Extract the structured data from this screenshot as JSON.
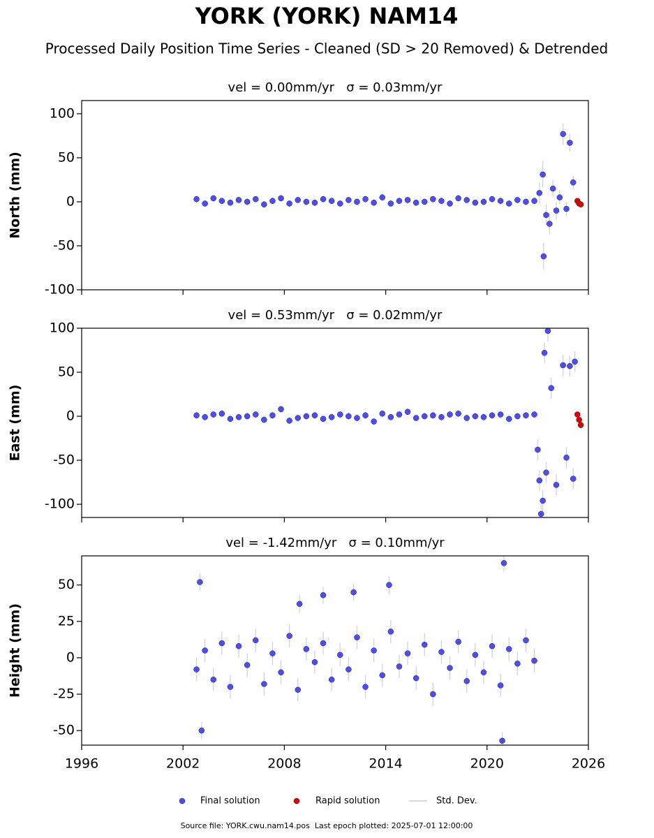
{
  "title": "YORK (YORK) NAM14",
  "subtitle": "Processed Daily Position Time Series - Cleaned (SD > 20 Removed) & Detrended",
  "footer": "Source file: YORK.cwu.nam14.pos  Last epoch plotted: 2025-07-01 12:00:00",
  "chart_data": [
    {
      "type": "scatter",
      "title": "vel = 0.00mm/yr   σ = 0.03mm/yr",
      "ylabel": "North (mm)",
      "error_label": "Std. Dev.",
      "xlim": [
        1996,
        2026
      ],
      "xticks": [
        1996,
        2002,
        2008,
        2014,
        2020,
        2026
      ],
      "ylim": [
        -100,
        115
      ],
      "yticks": [
        -100,
        -50,
        0,
        50,
        100
      ],
      "series": [
        {
          "name": "Final solution",
          "color": "#4b4bff",
          "x": [
            2002.8,
            2003.3,
            2003.8,
            2004.3,
            2004.8,
            2005.3,
            2005.8,
            2006.3,
            2006.8,
            2007.3,
            2007.8,
            2008.3,
            2008.8,
            2009.3,
            2009.8,
            2010.3,
            2010.8,
            2011.3,
            2011.8,
            2012.3,
            2012.8,
            2013.3,
            2013.8,
            2014.3,
            2014.8,
            2015.3,
            2015.8,
            2016.3,
            2016.8,
            2017.3,
            2017.8,
            2018.3,
            2018.8,
            2019.3,
            2019.8,
            2020.3,
            2020.8,
            2021.3,
            2021.8,
            2022.3,
            2022.8,
            2023.1,
            2023.3,
            2023.35,
            2023.5,
            2023.7,
            2023.9,
            2024.1,
            2024.3,
            2024.5,
            2024.7,
            2024.9,
            2025.1
          ],
          "values": [
            3,
            -2,
            4,
            1,
            -1,
            2,
            0,
            3,
            -3,
            1,
            4,
            -2,
            2,
            0,
            -1,
            3,
            1,
            -2,
            2,
            0,
            3,
            -1,
            5,
            -2,
            1,
            2,
            -1,
            0,
            3,
            1,
            -2,
            4,
            2,
            -1,
            0,
            3,
            1,
            -2,
            2,
            0,
            1,
            10,
            31,
            -62,
            -15,
            -25,
            15,
            -10,
            5,
            77,
            -8,
            67,
            22
          ],
          "errors": [
            4,
            4,
            4,
            4,
            4,
            4,
            4,
            4,
            4,
            4,
            4,
            4,
            4,
            4,
            4,
            4,
            4,
            4,
            4,
            4,
            4,
            4,
            4,
            4,
            4,
            4,
            4,
            4,
            4,
            4,
            4,
            4,
            4,
            4,
            4,
            4,
            4,
            4,
            4,
            4,
            4,
            12,
            15,
            15,
            12,
            12,
            10,
            10,
            8,
            12,
            8,
            10,
            8
          ]
        },
        {
          "name": "Rapid solution",
          "color": "#e00000",
          "x": [
            2025.35,
            2025.45,
            2025.55
          ],
          "values": [
            1,
            -2,
            -3
          ]
        }
      ]
    },
    {
      "type": "scatter",
      "title": "vel = 0.53mm/yr   σ = 0.02mm/yr",
      "ylabel": "East (mm)",
      "xlim": [
        1996,
        2026
      ],
      "xticks": [
        1996,
        2002,
        2008,
        2014,
        2020,
        2026
      ],
      "ylim": [
        -115,
        100
      ],
      "yticks": [
        -100,
        -50,
        0,
        50,
        100
      ],
      "series": [
        {
          "name": "Final solution",
          "color": "#4b4bff",
          "x": [
            2002.8,
            2003.3,
            2003.8,
            2004.3,
            2004.8,
            2005.3,
            2005.8,
            2006.3,
            2006.8,
            2007.3,
            2007.8,
            2008.3,
            2008.8,
            2009.3,
            2009.8,
            2010.3,
            2010.8,
            2011.3,
            2011.8,
            2012.3,
            2012.8,
            2013.3,
            2013.8,
            2014.3,
            2014.8,
            2015.3,
            2015.8,
            2016.3,
            2016.8,
            2017.3,
            2017.8,
            2018.3,
            2018.8,
            2019.3,
            2019.8,
            2020.3,
            2020.8,
            2021.3,
            2021.8,
            2022.3,
            2022.8,
            2023.0,
            2023.1,
            2023.2,
            2023.3,
            2023.4,
            2023.5,
            2023.6,
            2023.8,
            2024.1,
            2024.5,
            2024.7,
            2024.9,
            2025.1,
            2025.2
          ],
          "values": [
            1,
            -1,
            2,
            3,
            -3,
            -1,
            0,
            2,
            -4,
            1,
            8,
            -5,
            -2,
            0,
            1,
            -3,
            -1,
            2,
            0,
            -2,
            1,
            -6,
            3,
            -1,
            2,
            5,
            -2,
            0,
            1,
            -1,
            2,
            3,
            -2,
            0,
            -1,
            1,
            2,
            -3,
            0,
            1,
            2,
            -38,
            -73,
            -111,
            -96,
            72,
            -64,
            97,
            32,
            -78,
            58,
            -47,
            57,
            -71,
            62
          ],
          "errors": [
            4,
            4,
            4,
            4,
            4,
            4,
            4,
            4,
            4,
            4,
            4,
            4,
            4,
            4,
            4,
            4,
            4,
            4,
            4,
            4,
            4,
            4,
            4,
            4,
            4,
            4,
            4,
            4,
            4,
            4,
            4,
            4,
            4,
            4,
            4,
            4,
            4,
            4,
            4,
            4,
            4,
            12,
            12,
            12,
            12,
            12,
            12,
            12,
            12,
            12,
            12,
            12,
            12,
            12,
            12
          ]
        },
        {
          "name": "Rapid solution",
          "color": "#e00000",
          "x": [
            2025.35,
            2025.45,
            2025.55
          ],
          "values": [
            2,
            -4,
            -10
          ]
        }
      ]
    },
    {
      "type": "scatter",
      "title": "vel = -1.42mm/yr   σ = 0.10mm/yr",
      "ylabel": "Height (mm)",
      "xlim": [
        1996,
        2026
      ],
      "xticks": [
        1996,
        2002,
        2008,
        2014,
        2020,
        2026
      ],
      "ylim": [
        -60,
        70
      ],
      "yticks": [
        -50,
        -25,
        0,
        25,
        50
      ],
      "series": [
        {
          "name": "Final solution",
          "color": "#4b4bff",
          "x": [
            2002.8,
            2003.3,
            2003.8,
            2004.3,
            2004.8,
            2005.3,
            2005.8,
            2006.3,
            2006.8,
            2007.3,
            2007.8,
            2008.3,
            2008.8,
            2009.3,
            2009.8,
            2010.3,
            2010.8,
            2011.3,
            2011.8,
            2012.3,
            2012.8,
            2013.3,
            2013.8,
            2014.3,
            2014.8,
            2015.3,
            2015.8,
            2016.3,
            2016.8,
            2017.3,
            2017.8,
            2018.3,
            2018.8,
            2019.3,
            2019.8,
            2020.3,
            2020.8,
            2021.3,
            2021.8,
            2022.3,
            2022.8,
            2003.0,
            2003.1,
            2008.9,
            2010.3,
            2012.1,
            2014.2,
            2021.0,
            2020.9
          ],
          "values": [
            -8,
            5,
            -15,
            10,
            -20,
            8,
            -5,
            12,
            -18,
            3,
            -10,
            15,
            -22,
            6,
            -3,
            10,
            -15,
            2,
            -8,
            14,
            -20,
            5,
            -12,
            18,
            -6,
            3,
            -14,
            9,
            -25,
            4,
            -7,
            11,
            -16,
            2,
            -10,
            8,
            -19,
            6,
            -4,
            12,
            -2,
            52,
            -50,
            37,
            43,
            45,
            50,
            65,
            -57
          ],
          "errors": [
            8,
            8,
            8,
            8,
            8,
            8,
            8,
            8,
            8,
            8,
            8,
            8,
            8,
            8,
            8,
            8,
            8,
            8,
            8,
            8,
            8,
            8,
            8,
            8,
            8,
            8,
            8,
            8,
            8,
            8,
            8,
            8,
            8,
            8,
            8,
            8,
            8,
            8,
            8,
            8,
            8,
            6,
            6,
            6,
            6,
            6,
            6,
            6,
            6
          ]
        }
      ]
    }
  ]
}
